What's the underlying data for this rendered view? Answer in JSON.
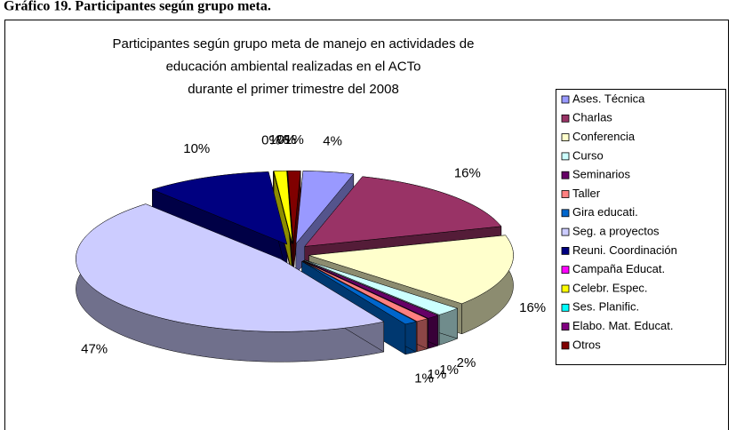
{
  "heading": "Gráfico 19. Participantes según grupo meta.",
  "chart_data": {
    "type": "pie",
    "title": [
      "Participantes según grupo meta de manejo en actividades de",
      "educación ambiental realizadas en el ACTo",
      "durante el primer trimestre del 2008"
    ],
    "categories": [
      "Ases. Técnica",
      "Charlas",
      "Conferencia",
      "Curso",
      "Seminarios",
      "Taller",
      "Gira educati.",
      "Seg. a proyectos",
      "Reuni. Coordinación",
      "Campaña Educat.",
      "Celebr. Espec.",
      "Ses. Planific.",
      "Elabo. Mat. Educat.",
      "Otros"
    ],
    "values": [
      4,
      16,
      16,
      2,
      1,
      1,
      1,
      47,
      10,
      0,
      1,
      0,
      0,
      1
    ],
    "value_labels": [
      "4%",
      "16%",
      "16%",
      "2%",
      "1%",
      "1%",
      "1%",
      "47%",
      "10%",
      "0%",
      "1%",
      "0%",
      "0%",
      "1%"
    ],
    "colors": [
      "#9999ff",
      "#993366",
      "#ffffcc",
      "#ccffff",
      "#660066",
      "#ff8080",
      "#0066cc",
      "#ccccff",
      "#000080",
      "#ff00ff",
      "#ffff00",
      "#00ffff",
      "#800080",
      "#800000"
    ],
    "legend": "right"
  }
}
